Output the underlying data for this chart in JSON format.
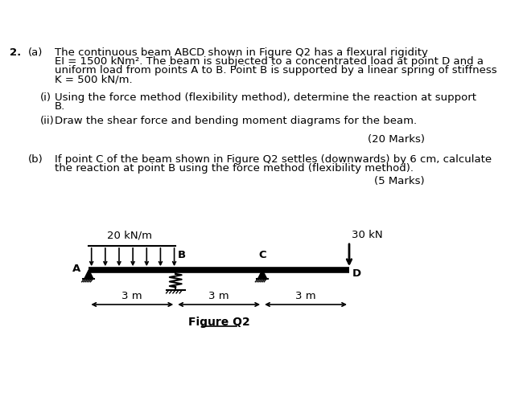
{
  "title_number": "2.",
  "part_a_label": "(a)",
  "sub_i_label": "(i)",
  "sub_i_lines": [
    "Using the force method (flexibility method), determine the reaction at support",
    "B."
  ],
  "sub_ii_label": "(ii)",
  "sub_ii_text": "Draw the shear force and bending moment diagrams for the beam.",
  "marks_a": "(20 Marks)",
  "part_b_label": "(b)",
  "part_b_lines": [
    "If point C of the beam shown in Figure Q2 settles (downwards) by 6 cm, calculate",
    "the reaction at point B using the force method (flexibility method)."
  ],
  "marks_b": "(5 Marks)",
  "figure_label": "Figure Q2",
  "udl_label": "20 kN/m",
  "point_load_label": "30 kN",
  "span_labels": [
    "3 m",
    "3 m",
    "3 m"
  ],
  "part_a_lines": [
    "The continuous beam ABCD shown in Figure Q2 has a flexural rigidity",
    "EI = 1500 kNm². The beam is subjected to a concentrated load at point D and a",
    "uniform load from points A to B. Point B is supported by a linear spring of stiffness",
    "K = 500 kN/m."
  ],
  "bg_color": "#ffffff",
  "text_color": "#000000",
  "beam_color": "#000000",
  "font_size_main": 9.5
}
